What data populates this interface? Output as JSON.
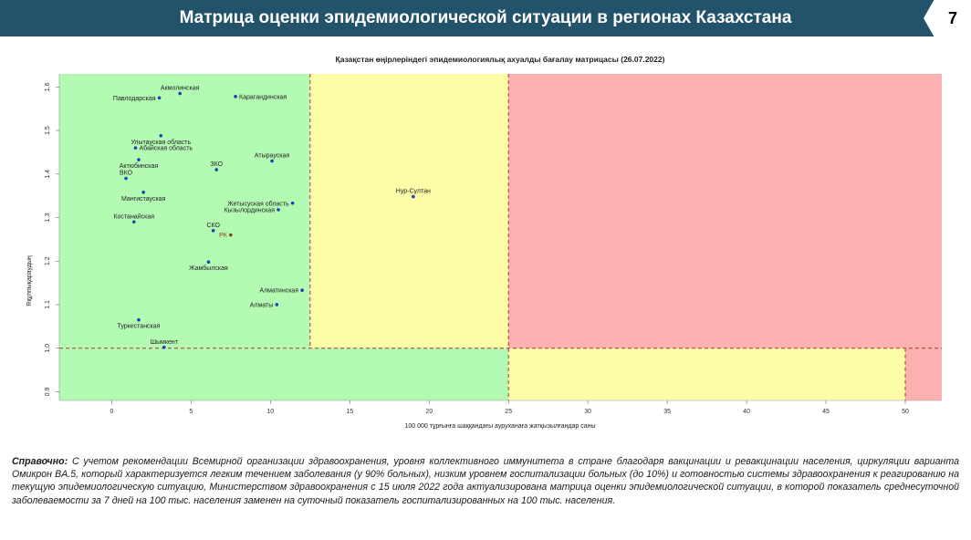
{
  "header": {
    "title": "Матрица оценки эпидемиологической ситуации в регионах Казахстана",
    "page_number": "7"
  },
  "chart_data": {
    "type": "scatter",
    "title": "Қазақстан өңірлеріндегі эпидемиологиялық ахуалды бағалау матрицасы  (26.07.2022)",
    "xlabel": "100 000 тұрғынға шаққандағы ауруханаға жатқызылғандар саны",
    "ylabel": "Rқұлпықараудың",
    "xlim": [
      -3.3,
      52.3
    ],
    "ylim": [
      0.88,
      1.63
    ],
    "xticks": [
      0,
      5,
      10,
      15,
      20,
      25,
      30,
      35,
      40,
      45,
      50
    ],
    "xtick_labels": [
      "0",
      "5",
      "10",
      "15",
      "20",
      "25",
      "30",
      "35",
      "40",
      "45",
      "50"
    ],
    "yticks": [
      0.9,
      1.0,
      1.1,
      1.2,
      1.3,
      1.4,
      1.5,
      1.6
    ],
    "ytick_labels": [
      "0.9",
      "1.0",
      "1.1",
      "1.2",
      "1.3",
      "1.4",
      "1.5",
      "1.6"
    ],
    "grid": false,
    "zones": [
      {
        "x": [
          -3.3,
          12.5
        ],
        "y": [
          1.0,
          1.63
        ],
        "color": "#b3fbb3"
      },
      {
        "x": [
          12.5,
          25
        ],
        "y": [
          1.0,
          1.63
        ],
        "color": "#fdfda8"
      },
      {
        "x": [
          25,
          52.3
        ],
        "y": [
          1.0,
          1.63
        ],
        "color": "#fdb1b1"
      },
      {
        "x": [
          -3.3,
          25
        ],
        "y": [
          0.88,
          1.0
        ],
        "color": "#b3fbb3"
      },
      {
        "x": [
          25,
          50
        ],
        "y": [
          0.88,
          1.0
        ],
        "color": "#fdfda8"
      },
      {
        "x": [
          50,
          52.3
        ],
        "y": [
          0.88,
          1.0
        ],
        "color": "#fdb1b1"
      }
    ],
    "reference_lines": [
      {
        "orientation": "vertical",
        "x": 12.5,
        "y": [
          1.0,
          1.63
        ]
      },
      {
        "orientation": "vertical",
        "x": 25,
        "y": [
          0.88,
          1.63
        ]
      },
      {
        "orientation": "vertical",
        "x": 50,
        "y": [
          0.88,
          1.0
        ]
      },
      {
        "orientation": "horizontal",
        "y": 1.0,
        "x": [
          -3.3,
          52.3
        ]
      }
    ],
    "points": [
      {
        "label": "Акмолинская",
        "x": 4.3,
        "y": 1.585,
        "label_pos": "above"
      },
      {
        "label": "Павлодарская",
        "x": 3.0,
        "y": 1.575,
        "label_pos": "left"
      },
      {
        "label": "Карагандинская",
        "x": 7.8,
        "y": 1.578,
        "label_pos": "right"
      },
      {
        "label": "Улытауская область",
        "x": 3.1,
        "y": 1.488,
        "label_pos": "below"
      },
      {
        "label": "Абайская область",
        "x": 1.5,
        "y": 1.46,
        "label_pos": "right"
      },
      {
        "label": "Атырауская",
        "x": 10.1,
        "y": 1.43,
        "label_pos": "above"
      },
      {
        "label": "Актюбинская",
        "x": 1.7,
        "y": 1.433,
        "label_pos": "below"
      },
      {
        "label": "ЗКО",
        "x": 6.6,
        "y": 1.41,
        "label_pos": "above"
      },
      {
        "label": "ВКО",
        "x": 0.9,
        "y": 1.39,
        "label_pos": "above"
      },
      {
        "label": "Мангистауская",
        "x": 2.0,
        "y": 1.358,
        "label_pos": "below"
      },
      {
        "label": "Нур-Султан",
        "x": 19.0,
        "y": 1.348,
        "label_pos": "above"
      },
      {
        "label": "Жетысуская область",
        "x": 11.4,
        "y": 1.333,
        "label_pos": "left"
      },
      {
        "label": "Кызылординская",
        "x": 10.5,
        "y": 1.318,
        "label_pos": "left"
      },
      {
        "label": "Костанайская",
        "x": 1.4,
        "y": 1.29,
        "label_pos": "above"
      },
      {
        "label": "СКО",
        "x": 6.4,
        "y": 1.27,
        "label_pos": "above"
      },
      {
        "label": "РК",
        "x": 7.5,
        "y": 1.26,
        "label_pos": "left"
      },
      {
        "label": "Жамбылская",
        "x": 6.1,
        "y": 1.198,
        "label_pos": "below"
      },
      {
        "label": "Алматинская",
        "x": 12.0,
        "y": 1.133,
        "label_pos": "left"
      },
      {
        "label": "Алматы",
        "x": 10.4,
        "y": 1.1,
        "label_pos": "left"
      },
      {
        "label": "Туркестанская",
        "x": 1.7,
        "y": 1.065,
        "label_pos": "below"
      },
      {
        "label": "Шымкент",
        "x": 3.3,
        "y": 1.002,
        "label_pos": "above"
      }
    ],
    "colors": {
      "point": "#1f3fb5",
      "point_rk": "#8a3b1a",
      "ref_line": "#b03030",
      "label": "#222222"
    }
  },
  "note": {
    "bold": "Справочно:",
    "text": " С учетом рекомендации Всемирной организации здравоохранения, уровня коллективного иммунитета в стране благодаря вакцинации и ревакцинации населения, циркуляции варианта Омикрон BA.5, который характеризуется легким течением заболевания (у 90% больных), низким уровнем госпитализации больных (до 10%) и готовностью системы здравоохранения к реагированию на текущую эпидемиологическую ситуацию, Министерством здравоохранения с 15 июля 2022 года актуализирована матрица оценки эпидемиологической ситуации, в которой показатель  среднесуточной заболеваемости за 7 дней на 100 тыс. населения заменен на  суточный показатель госпитализированных на 100 тыс. населения."
  }
}
